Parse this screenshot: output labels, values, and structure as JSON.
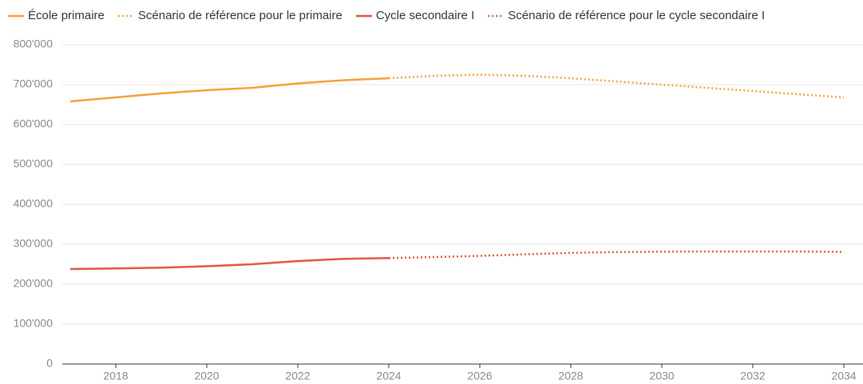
{
  "chart_data": {
    "type": "line",
    "x": [
      2017,
      2018,
      2019,
      2020,
      2021,
      2022,
      2023,
      2024,
      2025,
      2026,
      2027,
      2028,
      2029,
      2030,
      2031,
      2032,
      2033,
      2034
    ],
    "series": [
      {
        "name": "École primaire",
        "color": "#f5a03a",
        "dashed": false,
        "values": [
          658000,
          668000,
          678000,
          686000,
          692000,
          703000,
          711000,
          716000,
          null,
          null,
          null,
          null,
          null,
          null,
          null,
          null,
          null,
          null
        ]
      },
      {
        "name": "Scénario de référence pour le primaire",
        "color": "#f5a03a",
        "dashed": true,
        "values": [
          null,
          null,
          null,
          null,
          null,
          null,
          null,
          716000,
          722000,
          725000,
          722000,
          716000,
          708000,
          700000,
          692000,
          684000,
          676000,
          668000
        ]
      },
      {
        "name": "Cycle secondaire I",
        "color": "#e0563f",
        "dashed": false,
        "values": [
          238000,
          239500,
          241500,
          245000,
          250000,
          258000,
          263500,
          265500,
          null,
          null,
          null,
          null,
          null,
          null,
          null,
          null,
          null,
          null
        ]
      },
      {
        "name": "Scénario de référence pour le cycle secondaire I",
        "color": "#e0563f",
        "dashed": true,
        "values": [
          null,
          null,
          null,
          null,
          null,
          null,
          null,
          265500,
          268000,
          271000,
          275000,
          278500,
          280500,
          281500,
          282000,
          282000,
          282000,
          281000
        ]
      }
    ],
    "xlim": [
      2017,
      2034
    ],
    "xticks": [
      2018,
      2020,
      2022,
      2024,
      2026,
      2028,
      2030,
      2032,
      2034
    ],
    "ylim": [
      0,
      800000
    ],
    "yticks": [
      0,
      {
        "value": 100000,
        "label": "100'000"
      },
      {
        "value": 200000,
        "label": "200'000"
      },
      {
        "value": 300000,
        "label": "300'000"
      },
      {
        "value": 400000,
        "label": "400'000"
      },
      {
        "value": 500000,
        "label": "500'000"
      },
      {
        "value": 600000,
        "label": "600'000"
      },
      {
        "value": 700000,
        "label": "700'000"
      },
      {
        "value": 800000,
        "label": "800'000"
      }
    ],
    "grid": true,
    "legend": "top"
  }
}
